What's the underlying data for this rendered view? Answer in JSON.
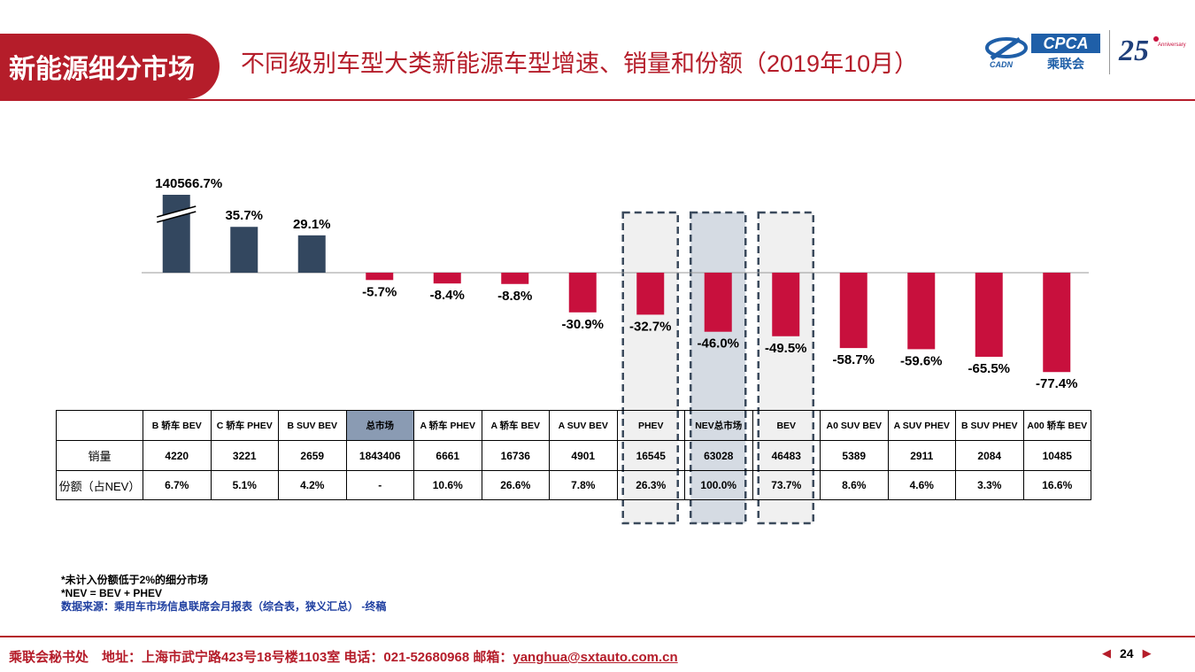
{
  "header": {
    "badge": "新能源细分市场",
    "title": "不同级别车型大类新能源车型增速、销量和份额（2019年10月）",
    "logo_cpca": "CPCA",
    "logo_cpca_sub": "乘联会",
    "logo_cadn": "CADN",
    "logo_25": "25",
    "logo_25_sub": "Anniversary"
  },
  "colors": {
    "brand_red": "#b51d2a",
    "bar_positive": "#33475f",
    "bar_negative": "#c8103d",
    "box_fill_grey": "#f0f0f0",
    "box_fill_blue": "#d5dbe3",
    "box_border": "#3b4a5c"
  },
  "chart_data": {
    "type": "bar",
    "categories": [
      "B 轿车 BEV",
      "C 轿车 PHEV",
      "B SUV BEV",
      "总市场",
      "A 轿车 PHEV",
      "A 轿车 BEV",
      "A SUV BEV",
      "PHEV",
      "NEV总市场",
      "BEV",
      "A0 SUV BEV",
      "A SUV PHEV",
      "B SUV PHEV",
      "A00 轿车 BEV"
    ],
    "values": [
      140566.7,
      35.7,
      29.1,
      -5.7,
      -8.4,
      -8.8,
      -30.9,
      -32.7,
      -46.0,
      -49.5,
      -58.7,
      -59.6,
      -65.5,
      -77.4
    ],
    "value_labels": [
      "140566.7%",
      "35.7%",
      "29.1%",
      "-5.7%",
      "-8.4%",
      "-8.8%",
      "-30.9%",
      "-32.7%",
      "-46.0%",
      "-49.5%",
      "-58.7%",
      "-59.6%",
      "-65.5%",
      "-77.4%"
    ],
    "axis_break": "B 轿车 BEV",
    "highlighted": [
      "PHEV",
      "NEV总市场",
      "BEV"
    ],
    "unit": "%"
  },
  "table": {
    "row_labels": [
      "销量",
      "份额（占NEV）"
    ],
    "sales": [
      "4220",
      "3221",
      "2659",
      "1843406",
      "6661",
      "16736",
      "4901",
      "16545",
      "63028",
      "46483",
      "5389",
      "2911",
      "2084",
      "10485"
    ],
    "share": [
      "6.7%",
      "5.1%",
      "4.2%",
      "-",
      "10.6%",
      "26.6%",
      "7.8%",
      "26.3%",
      "100.0%",
      "73.7%",
      "8.6%",
      "4.6%",
      "3.3%",
      "16.6%"
    ]
  },
  "notes": {
    "note1": "*未计入份额低于2%的细分市场",
    "note2": "*NEV = BEV + PHEV",
    "source": "数据来源：乘用车市场信息联席会月报表（综合表，狭义汇总） -终稿"
  },
  "footer": {
    "text": "乘联会秘书处　地址：上海市武宁路423号18号楼1103室  电话：021-52680968   邮箱：",
    "email": "yanghua@sxtauto.com.cn",
    "page": "24"
  }
}
